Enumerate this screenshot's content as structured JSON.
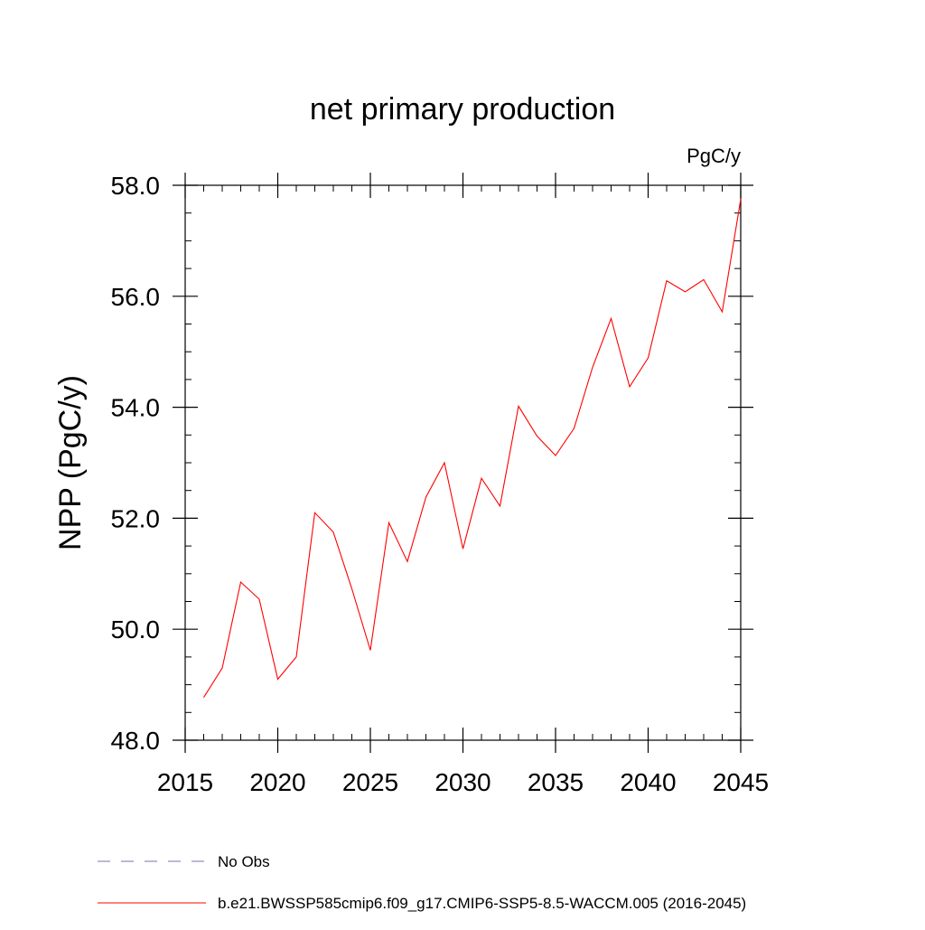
{
  "chart_data": {
    "type": "line",
    "title": "net primary production",
    "units_label": "PgC/y",
    "ylabel": "NPP  (PgC/y)",
    "xlabel": "",
    "xlim": [
      2015,
      2045
    ],
    "ylim": [
      48.0,
      58.0
    ],
    "x_ticks": [
      2015,
      2020,
      2025,
      2030,
      2035,
      2040,
      2045
    ],
    "x_tick_labels": [
      "2015",
      "2020",
      "2025",
      "2030",
      "2035",
      "2040",
      "2045"
    ],
    "y_ticks": [
      48.0,
      50.0,
      52.0,
      54.0,
      56.0,
      58.0
    ],
    "y_tick_labels": [
      "48.0",
      "50.0",
      "52.0",
      "54.0",
      "56.0",
      "58.0"
    ],
    "grid": false,
    "legend_position": "bottom",
    "legend": [
      {
        "label": "No Obs",
        "color": "#7f6fb0",
        "style": "dashed"
      },
      {
        "label": "b.e21.BWSSP585cmip6.f09_g17.CMIP6-SSP5-8.5-WACCM.005 (2016-2045)",
        "color": "#ff0000",
        "style": "solid"
      }
    ],
    "series": [
      {
        "name": "b.e21.BWSSP585cmip6.f09_g17.CMIP6-SSP5-8.5-WACCM.005 (2016-2045)",
        "color": "#ff0000",
        "x": [
          2016,
          2017,
          2018,
          2019,
          2020,
          2021,
          2022,
          2023,
          2024,
          2025,
          2026,
          2027,
          2028,
          2029,
          2030,
          2031,
          2032,
          2033,
          2034,
          2035,
          2036,
          2037,
          2038,
          2039,
          2040,
          2041,
          2042,
          2043,
          2044,
          2045
        ],
        "y": [
          48.77,
          49.3,
          50.85,
          50.54,
          49.1,
          49.5,
          52.1,
          51.75,
          50.73,
          49.62,
          51.92,
          51.22,
          52.38,
          53.0,
          51.45,
          52.72,
          52.22,
          54.02,
          53.48,
          53.13,
          53.62,
          54.72,
          55.6,
          54.37,
          54.89,
          56.28,
          56.08,
          56.3,
          55.72,
          57.75
        ]
      }
    ]
  }
}
